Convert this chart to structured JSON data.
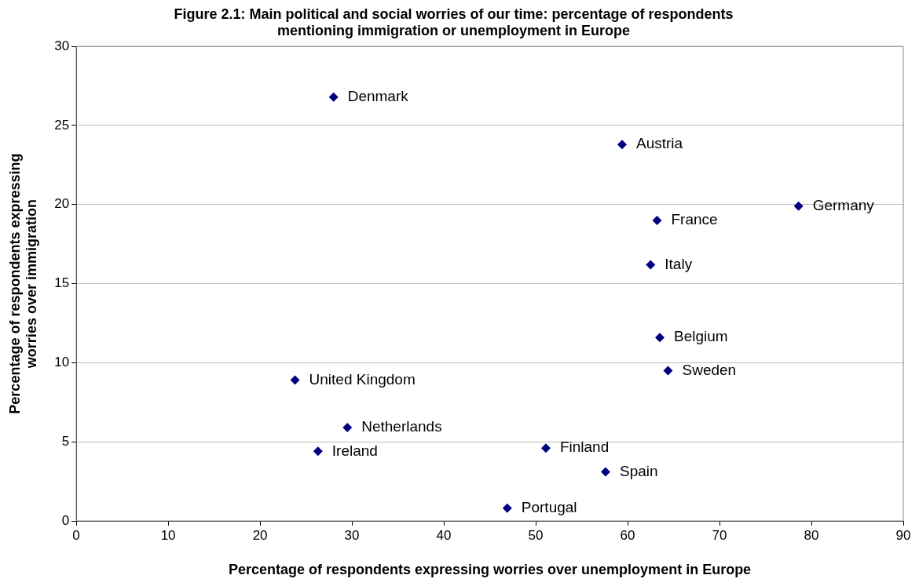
{
  "chart_data": {
    "type": "scatter",
    "title": "Figure 2.1: Main political and social worries of our time: percentage of respondents mentioning immigration or unemployment in Europe",
    "xlabel": "Percentage of respondents expressing worries over unemployment in Europe",
    "ylabel": "Percentage of respondents expressing worries over immigration",
    "xlim": [
      0,
      90
    ],
    "xticks": [
      0,
      10,
      20,
      30,
      40,
      50,
      60,
      70,
      80,
      90
    ],
    "ylim": [
      0,
      30
    ],
    "yticks": [
      0,
      5,
      10,
      15,
      20,
      25,
      30
    ],
    "grid": "y",
    "legend": false,
    "marker": "diamond",
    "series": [
      {
        "name": "Denmark",
        "color": "#000080",
        "x": [
          28.0
        ],
        "values": [
          26.8
        ]
      },
      {
        "name": "Austria",
        "color": "#000080",
        "x": [
          59.4
        ],
        "values": [
          23.8
        ]
      },
      {
        "name": "Germany",
        "color": "#000080",
        "x": [
          78.6
        ],
        "values": [
          19.9
        ]
      },
      {
        "name": "France",
        "color": "#000080",
        "x": [
          63.2
        ],
        "values": [
          19.0
        ]
      },
      {
        "name": "Italy",
        "color": "#000080",
        "x": [
          62.5
        ],
        "values": [
          16.2
        ]
      },
      {
        "name": "Belgium",
        "color": "#000080",
        "x": [
          63.5
        ],
        "values": [
          11.6
        ]
      },
      {
        "name": "Sweden",
        "color": "#000080",
        "x": [
          64.4
        ],
        "values": [
          9.5
        ]
      },
      {
        "name": "United Kingdom",
        "color": "#000080",
        "x": [
          23.8
        ],
        "values": [
          8.9
        ]
      },
      {
        "name": "Netherlands",
        "color": "#000080",
        "x": [
          29.5
        ],
        "values": [
          5.9
        ]
      },
      {
        "name": "Ireland",
        "color": "#000080",
        "x": [
          26.3
        ],
        "values": [
          4.4
        ]
      },
      {
        "name": "Finland",
        "color": "#000080",
        "x": [
          51.1
        ],
        "values": [
          4.6
        ]
      },
      {
        "name": "Spain",
        "color": "#000080",
        "x": [
          57.6
        ],
        "values": [
          3.1
        ]
      },
      {
        "name": "Portugal",
        "color": "#000080",
        "x": [
          46.9
        ],
        "values": [
          0.8
        ]
      }
    ]
  }
}
